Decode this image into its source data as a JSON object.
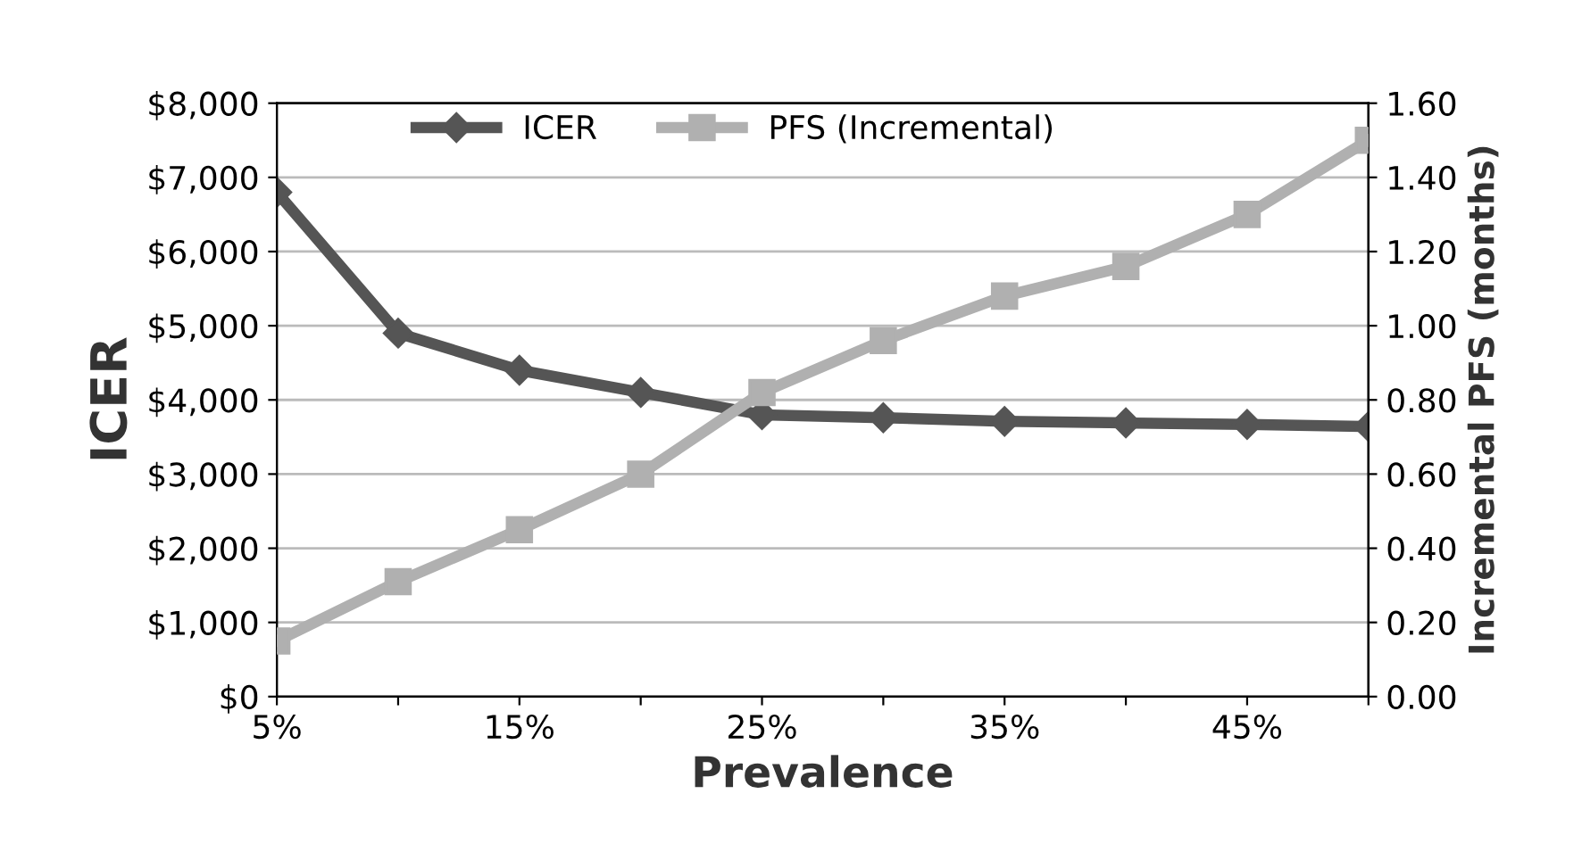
{
  "chart_data": {
    "type": "line",
    "xlabel": "Prevalence",
    "ylabel": "ICER",
    "y2label": "Incremental PFS (months)",
    "categories": [
      "5%",
      null,
      "15%",
      null,
      "25%",
      null,
      "35%",
      null,
      "45%",
      null
    ],
    "series": [
      {
        "name": "ICER",
        "color": "#555555",
        "marker": "diamond",
        "values": [
          6800,
          4900,
          4400,
          4100,
          3800,
          3760,
          3710,
          3690,
          3670,
          3640
        ]
      },
      {
        "name": "PFS (Incremental)",
        "color": "#b0b0b0",
        "marker": "square",
        "axis": "y2",
        "values": [
          0.15,
          0.31,
          0.45,
          0.6,
          0.82,
          0.96,
          1.08,
          1.16,
          1.3,
          1.5
        ]
      }
    ],
    "ylim": [
      0,
      8000
    ],
    "yticks": [
      {
        "value": 0,
        "label": "$0"
      },
      {
        "value": 1000,
        "label": "$1,000"
      },
      {
        "value": 2000,
        "label": "$2,000"
      },
      {
        "value": 3000,
        "label": "$3,000"
      },
      {
        "value": 4000,
        "label": "$4,000"
      },
      {
        "value": 5000,
        "label": "$5,000"
      },
      {
        "value": 6000,
        "label": "$6,000"
      },
      {
        "value": 7000,
        "label": "$7,000"
      },
      {
        "value": 8000,
        "label": "$8,000"
      }
    ],
    "y2lim": [
      0,
      1.6
    ],
    "y2ticks": [
      {
        "value": 0,
        "label": "0.00"
      },
      {
        "value": 0.2,
        "label": "0.20"
      },
      {
        "value": 0.4,
        "label": "0.40"
      },
      {
        "value": 0.6,
        "label": "0.60"
      },
      {
        "value": 0.8,
        "label": "0.80"
      },
      {
        "value": 1.0,
        "label": "1.00"
      },
      {
        "value": 1.2,
        "label": "1.20"
      },
      {
        "value": 1.4,
        "label": "1.40"
      },
      {
        "value": 1.6,
        "label": "1.60"
      }
    ],
    "grid": "y",
    "legend": "top",
    "line_style": "solid"
  }
}
